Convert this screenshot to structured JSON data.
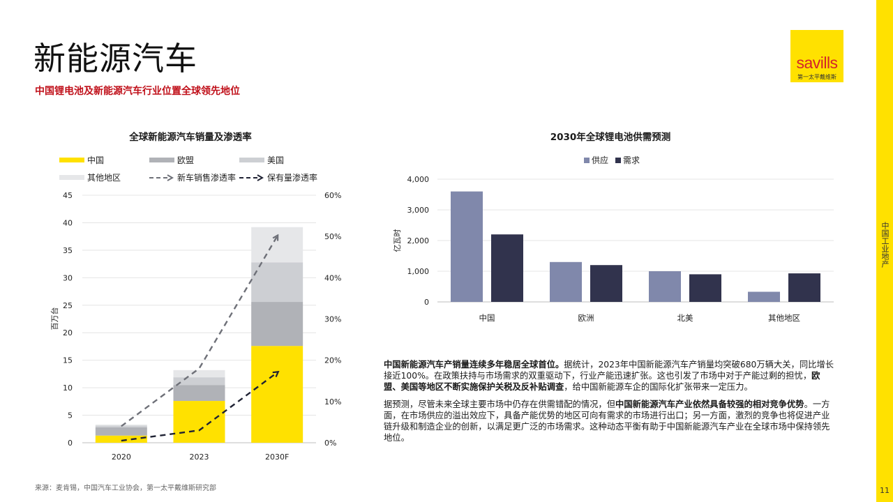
{
  "header": {
    "title": "新能源汽车",
    "subtitle": "中国锂电池及新能源汽车行业位置全球领先地位"
  },
  "logo": {
    "word": "savills",
    "sub": "第一太平戴维斯"
  },
  "side": {
    "label": "中国工业地产",
    "page_number": "11"
  },
  "colors": {
    "yellow": "#ffe100",
    "red": "#c0101a",
    "supply": "#8088ab",
    "demand": "#31334d"
  },
  "chart_data": [
    {
      "type": "bar",
      "stacked": true,
      "title": "全球新能源汽车销量及渗透率",
      "categories": [
        "2020",
        "2023",
        "2030F"
      ],
      "ylabel": "百万台",
      "ylim": [
        0,
        45
      ],
      "yticks": [
        "0",
        "5",
        "10",
        "15",
        "20",
        "25",
        "30",
        "35",
        "40",
        "45"
      ],
      "y2lim": [
        0,
        60
      ],
      "y2ticks": [
        "0%",
        "10%",
        "20%",
        "30%",
        "40%",
        "50%",
        "60%"
      ],
      "grid": true,
      "legend_position": "top",
      "series": [
        {
          "name": "中国",
          "values": [
            1.3,
            7.6,
            17.6
          ],
          "color": "#ffe100"
        },
        {
          "name": "欧盟",
          "values": [
            1.5,
            2.9,
            8.0
          ],
          "color": "#b0b2b7"
        },
        {
          "name": "美国",
          "values": [
            0.3,
            1.4,
            7.2
          ],
          "color": "#cdcfd3"
        },
        {
          "name": "其他地区",
          "values": [
            0.2,
            1.3,
            6.4
          ],
          "color": "#e6e7e9"
        }
      ],
      "lines": [
        {
          "name": "新车销售渗透率",
          "axis": "right",
          "values": [
            4.0,
            18.0,
            50.0
          ],
          "color": "#6e7078",
          "style": "dashed"
        },
        {
          "name": "保有量渗透率",
          "axis": "right",
          "values": [
            0.5,
            3.0,
            17.0
          ],
          "color": "#1f2233",
          "style": "dashed"
        }
      ]
    },
    {
      "type": "bar",
      "title": "2030年全球锂电池供需预测",
      "categories": [
        "中国",
        "欧洲",
        "北美",
        "其他地区"
      ],
      "ylabel": "亿瓦时",
      "ylim": [
        0,
        4000
      ],
      "yticks": [
        "0",
        "1,000",
        "2,000",
        "3,000",
        "4,000"
      ],
      "grid": true,
      "legend_position": "top",
      "series": [
        {
          "name": "供应",
          "values": [
            3600,
            1300,
            1000,
            330
          ],
          "color": "#8088ab"
        },
        {
          "name": "需求",
          "values": [
            2200,
            1200,
            900,
            930
          ],
          "color": "#31334d"
        }
      ]
    }
  ],
  "paragraphs": {
    "p1_bold1": "中国新能源汽车产销量连续多年稳居全球首位。",
    "p1_text1": "据统计，2023年中国新能源汽车产销量均突破680万辆大关，同比增长接近100%。在政策扶持与市场需求的双重驱动下，行业产能迅速扩张。这也引发了市场中对于产能过剩的担忧，",
    "p1_bold2": "欧盟、美国等地区不断实施保护关税及反补贴调查",
    "p1_text2": "，给中国新能源车企的国际化扩张带来一定压力。",
    "p2_text1": "据预测，尽管未来全球主要市场中仍存在供需错配的情况，但",
    "p2_bold1": "中国新能源汽车产业依然具备较强的相对竞争优势",
    "p2_text2": "。一方面，在市场供应的溢出效应下，具备产能优势的地区可向有需求的市场进行出口；另一方面，激烈的竞争也将促进产业链升级和制造企业的创新，以满足更广泛的市场需求。这种动态平衡有助于中国新能源汽车产业在全球市场中保持领先地位。"
  },
  "source": "来源：麦肯锡，中国汽车工业协会，第一太平戴维斯研究部"
}
